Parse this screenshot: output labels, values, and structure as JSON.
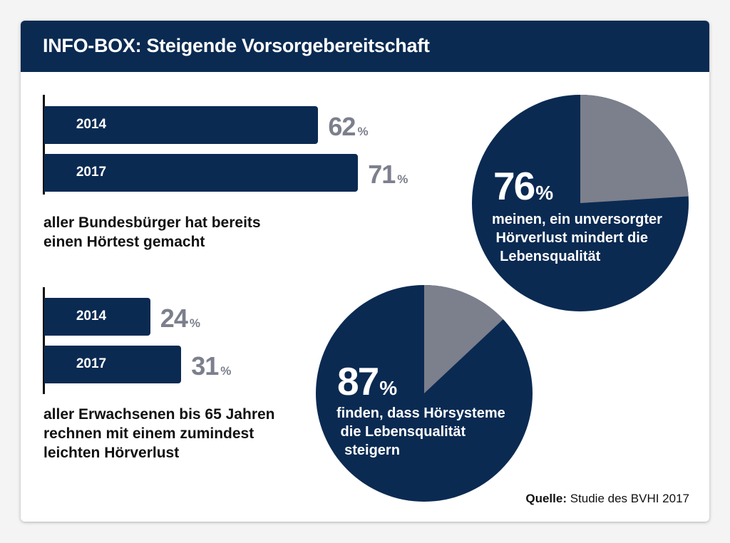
{
  "header": {
    "title": "INFO-BOX: Steigende Vorsorgebereitschaft"
  },
  "chart_data": [
    {
      "type": "bar",
      "categories": [
        "2014",
        "2017"
      ],
      "values": [
        62,
        71
      ],
      "unit": "%",
      "caption": "aller Bundesbürger hat bereits\neinen Hörtest gemacht",
      "bar_color": "#0a2a52",
      "value_color": "#7c7f8c"
    },
    {
      "type": "bar",
      "categories": [
        "2014",
        "2017"
      ],
      "values": [
        24,
        31
      ],
      "unit": "%",
      "caption": "aller Erwachsenen bis 65 Jahren\nrechnen mit einem zumindest\nleichten Hörverlust",
      "bar_color": "#0a2a52",
      "value_color": "#7c7f8c"
    },
    {
      "type": "pie",
      "value": 76,
      "unit": "%",
      "text": "meinen, ein unversorgter\n Hörverlust mindert die\n  Lebensqualität",
      "main_color": "#0a2a52",
      "rest_color": "#7c7f8c"
    },
    {
      "type": "pie",
      "value": 87,
      "unit": "%",
      "text": "finden, dass Hörsysteme\n die Lebensqualität\n  steigern",
      "main_color": "#0a2a52",
      "rest_color": "#7c7f8c"
    }
  ],
  "source": {
    "label": "Quelle:",
    "text": " Studie des BVHI 2017"
  }
}
